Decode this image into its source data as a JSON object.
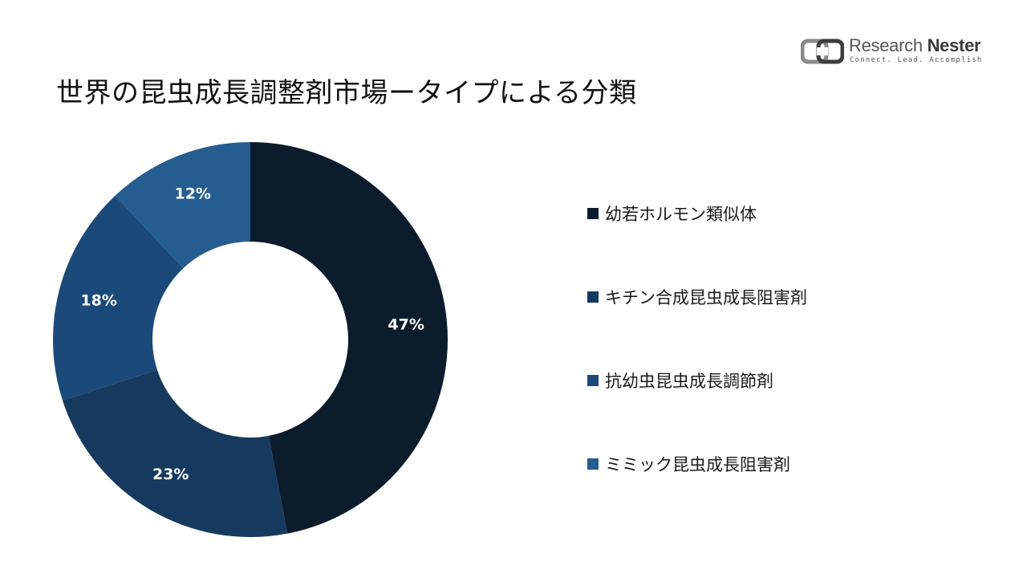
{
  "title": "世界の昆虫成長調整剤市場ータイプによる分類",
  "logo": {
    "name_part1": "Research ",
    "name_part2": "Nester",
    "tagline": "Connect. Lead. Accomplish",
    "color": "#555555"
  },
  "chart_data": {
    "type": "pie",
    "variant": "donut",
    "title": "",
    "categories": [
      "幼若ホルモン類似体",
      "キチン合成昆虫成長阻害剤",
      "抗幼虫昆虫成長調節剤",
      "ミミック昆虫成長阻害剤"
    ],
    "values": [
      47,
      23,
      18,
      12
    ],
    "labels": [
      "47%",
      "23%",
      "18%",
      "12%"
    ],
    "colors": [
      "#0c1c2c",
      "#163a5e",
      "#1b4a7a",
      "#255d90"
    ],
    "start_angle_deg": 0,
    "direction": "clockwise",
    "legend_position": "right"
  },
  "legend": {
    "items": [
      {
        "label": "幼若ホルモン類似体",
        "color": "#0c1c2c"
      },
      {
        "label": "キチン合成昆虫成長阻害剤",
        "color": "#163a5e"
      },
      {
        "label": "抗幼虫昆虫成長調節剤",
        "color": "#1b4a7a"
      },
      {
        "label": "ミミック昆虫成長阻害剤",
        "color": "#255d90"
      }
    ]
  }
}
